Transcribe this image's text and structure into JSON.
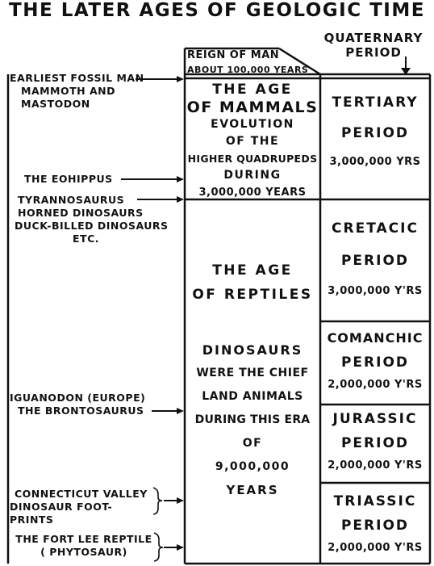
{
  "title": "THE LATER AGES OF GEOLOGIC TIME",
  "headers": {
    "quaternary": [
      "QUATERNARY",
      "PERIOD"
    ],
    "reign": [
      "REIGN OF MAN",
      "ABOUT 100,000 YEARS"
    ]
  },
  "mammals": {
    "title": [
      "THE AGE",
      "OF MAMMALS"
    ],
    "body": [
      "EVOLUTION",
      "OF THE",
      "HIGHER QUADRUPEDS",
      "DURING",
      "3,000,000 YEARS"
    ]
  },
  "reptiles": {
    "title": [
      "THE AGE",
      "OF REPTILES"
    ],
    "body": [
      "DINOSAURS",
      "WERE THE CHIEF",
      "LAND ANIMALS",
      "DURING THIS ERA",
      "OF",
      "9,000,000",
      "YEARS"
    ]
  },
  "periods": [
    {
      "name": "TERTIARY",
      "label": "PERIOD",
      "years": "3,000,000 YRS"
    },
    {
      "name": "CRETACIC",
      "label": "PERIOD",
      "years": "3,000,000 Y'RS"
    },
    {
      "name": "COMANCHIC",
      "label": "PERIOD",
      "years": "2,000,000 Y'RS"
    },
    {
      "name": "JURASSIC",
      "label": "PERIOD",
      "years": "2,000,000 Y'RS"
    },
    {
      "name": "TRIASSIC",
      "label": "PERIOD",
      "years": "2,000,000 Y'RS"
    }
  ],
  "fossils": {
    "earliest_man": [
      "EARLIEST FOSSIL MAN",
      "MAMMOTH AND MASTODON"
    ],
    "eohippus": "THE EOHIPPUS",
    "dinosaurs": [
      "TYRANNOSAURUS",
      "HORNED DINOSAURS",
      "DUCK-BILLED DINOSAURS",
      "ETC."
    ],
    "iguanodon": [
      "IGUANODON (EUROPE)",
      "THE BRONTOSAURUS"
    ],
    "connecticut": [
      "CONNECTICUT VALLEY",
      "DINOSAUR FOOT-PRINTS"
    ],
    "fort_lee": [
      "THE FORT LEE REPTILE",
      "( PHYTOSAUR)"
    ]
  }
}
